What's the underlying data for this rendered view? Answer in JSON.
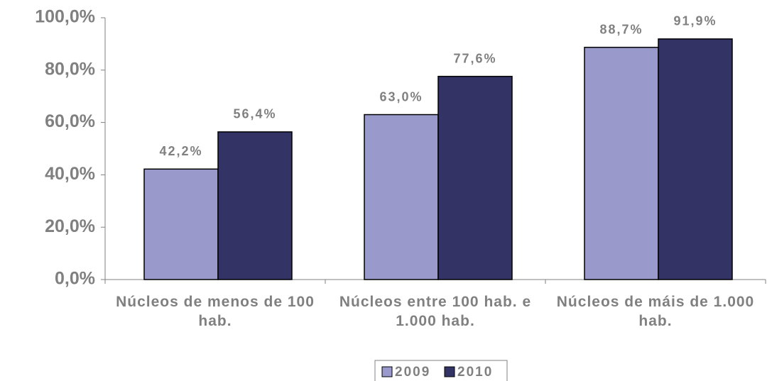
{
  "chart_data": {
    "type": "bar",
    "categories": [
      "Núcleos de menos de 100 hab.",
      "Núcleos entre 100 hab. e 1.000 hab.",
      "Núcleos de máis de 1.000 hab."
    ],
    "series": [
      {
        "name": "2009",
        "color": "#9999cc",
        "values": [
          42.2,
          63.0,
          88.7
        ],
        "value_labels": [
          "42,2%",
          "63,0%",
          "88,7%"
        ]
      },
      {
        "name": "2010",
        "color": "#333366",
        "values": [
          56.4,
          77.6,
          91.9
        ],
        "value_labels": [
          "56,4%",
          "77,6%",
          "91,9%"
        ]
      }
    ],
    "ylim": [
      0,
      100
    ],
    "yticks": [
      {
        "value": 0,
        "label": "0,0%"
      },
      {
        "value": 20,
        "label": "20,0%"
      },
      {
        "value": 40,
        "label": "40,0%"
      },
      {
        "value": 60,
        "label": "60,0%"
      },
      {
        "value": 80,
        "label": "80,0%"
      },
      {
        "value": 100,
        "label": "100,0%"
      }
    ],
    "legend": "bottom"
  }
}
